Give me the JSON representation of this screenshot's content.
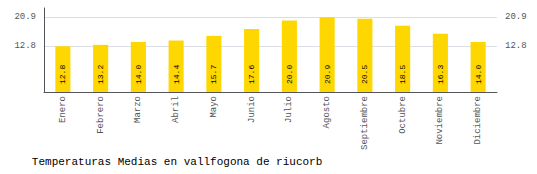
{
  "chart_data": {
    "type": "bar",
    "title": "Temperaturas Medias en vallfogona de riucorb",
    "categories": [
      "Enero",
      "Febrero",
      "Marzo",
      "Abril",
      "Mayo",
      "Junio",
      "Julio",
      "Agosto",
      "Septiembre",
      "Octubre",
      "Noviembre",
      "Diciembre"
    ],
    "values": [
      12.8,
      13.2,
      14.0,
      14.4,
      15.7,
      17.6,
      20.0,
      20.9,
      20.5,
      18.5,
      16.3,
      14.0
    ],
    "value_labels": [
      "12.8",
      "13.2",
      "14.0",
      "14.4",
      "15.7",
      "17.6",
      "20.0",
      "20.9",
      "20.5",
      "18.5",
      "16.3",
      "14.0"
    ],
    "data_labels": true,
    "color": "#FFD700",
    "ylim": [
      0,
      23.5
    ],
    "yticks": [
      12.8,
      20.9
    ],
    "y2lim": [
      0,
      23.5
    ],
    "y2ticks": [
      12.8,
      20.9
    ],
    "grid": true
  }
}
